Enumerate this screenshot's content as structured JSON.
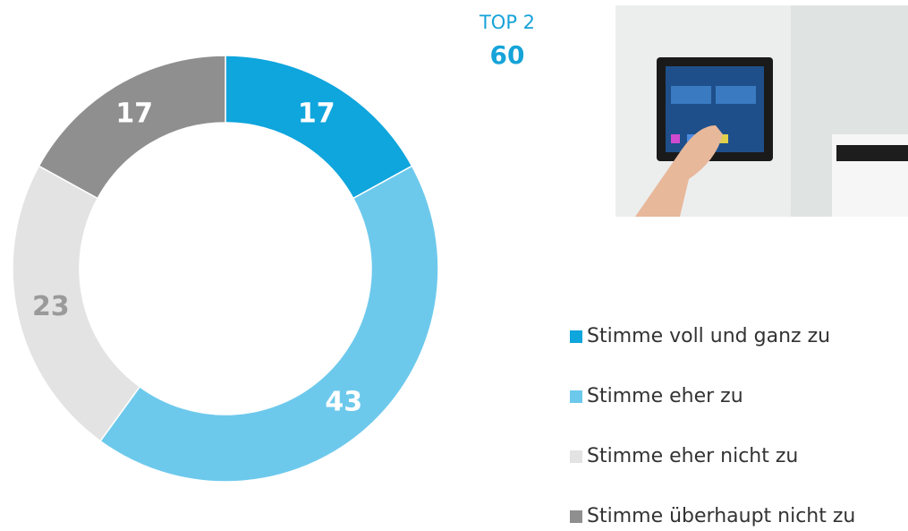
{
  "chart_data": {
    "type": "donut",
    "categories": [
      "Stimme voll und ganz zu",
      "Stimme eher zu",
      "Stimme eher nicht zu",
      "Stimme überhaupt nicht zu"
    ],
    "values": [
      17,
      43,
      23,
      17
    ],
    "colors": [
      "#0fa5dd",
      "#6dc9ec",
      "#e3e3e3",
      "#8f8f8f"
    ],
    "label_colors": [
      "#ffffff",
      "#ffffff",
      "#9a9a9a",
      "#ffffff"
    ],
    "annotation": {
      "label": "TOP 2",
      "value": 60
    },
    "legend": "right"
  }
}
